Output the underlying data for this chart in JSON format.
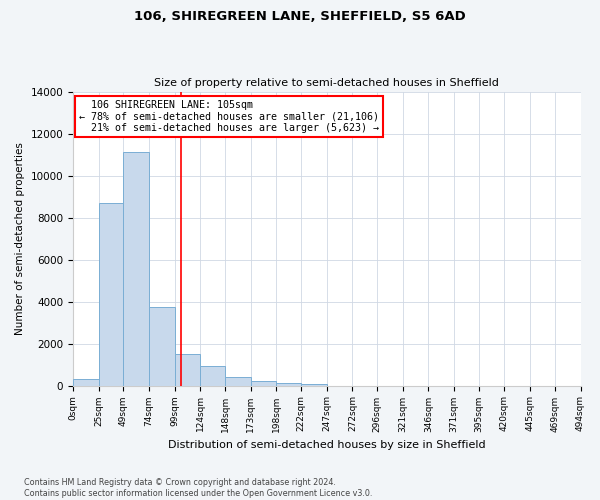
{
  "title": "106, SHIREGREEN LANE, SHEFFIELD, S5 6AD",
  "subtitle": "Size of property relative to semi-detached houses in Sheffield",
  "xlabel": "Distribution of semi-detached houses by size in Sheffield",
  "ylabel": "Number of semi-detached properties",
  "bar_color": "#c8d9ec",
  "bar_edge_color": "#7aaed4",
  "property_line_color": "red",
  "property_size": 105,
  "property_label": "106 SHIREGREEN LANE: 105sqm",
  "pct_smaller": 78,
  "pct_smaller_count": "21,106",
  "pct_larger": 21,
  "pct_larger_count": "5,623",
  "bin_edges": [
    0,
    25,
    49,
    74,
    99,
    124,
    148,
    173,
    198,
    222,
    247,
    272,
    296,
    321,
    346,
    371,
    395,
    420,
    445,
    469,
    494
  ],
  "bin_values": [
    320,
    8700,
    11100,
    3750,
    1500,
    950,
    430,
    220,
    120,
    80,
    0,
    0,
    0,
    0,
    0,
    0,
    0,
    0,
    0,
    0
  ],
  "ylim": [
    0,
    14000
  ],
  "yticks": [
    0,
    2000,
    4000,
    6000,
    8000,
    10000,
    12000,
    14000
  ],
  "tick_labels": [
    "0sqm",
    "25sqm",
    "49sqm",
    "74sqm",
    "99sqm",
    "124sqm",
    "148sqm",
    "173sqm",
    "198sqm",
    "222sqm",
    "247sqm",
    "272sqm",
    "296sqm",
    "321sqm",
    "346sqm",
    "371sqm",
    "395sqm",
    "420sqm",
    "445sqm",
    "469sqm",
    "494sqm"
  ],
  "footnote": "Contains HM Land Registry data © Crown copyright and database right 2024.\nContains public sector information licensed under the Open Government Licence v3.0.",
  "background_color": "#f2f5f8",
  "plot_background_color": "#ffffff"
}
